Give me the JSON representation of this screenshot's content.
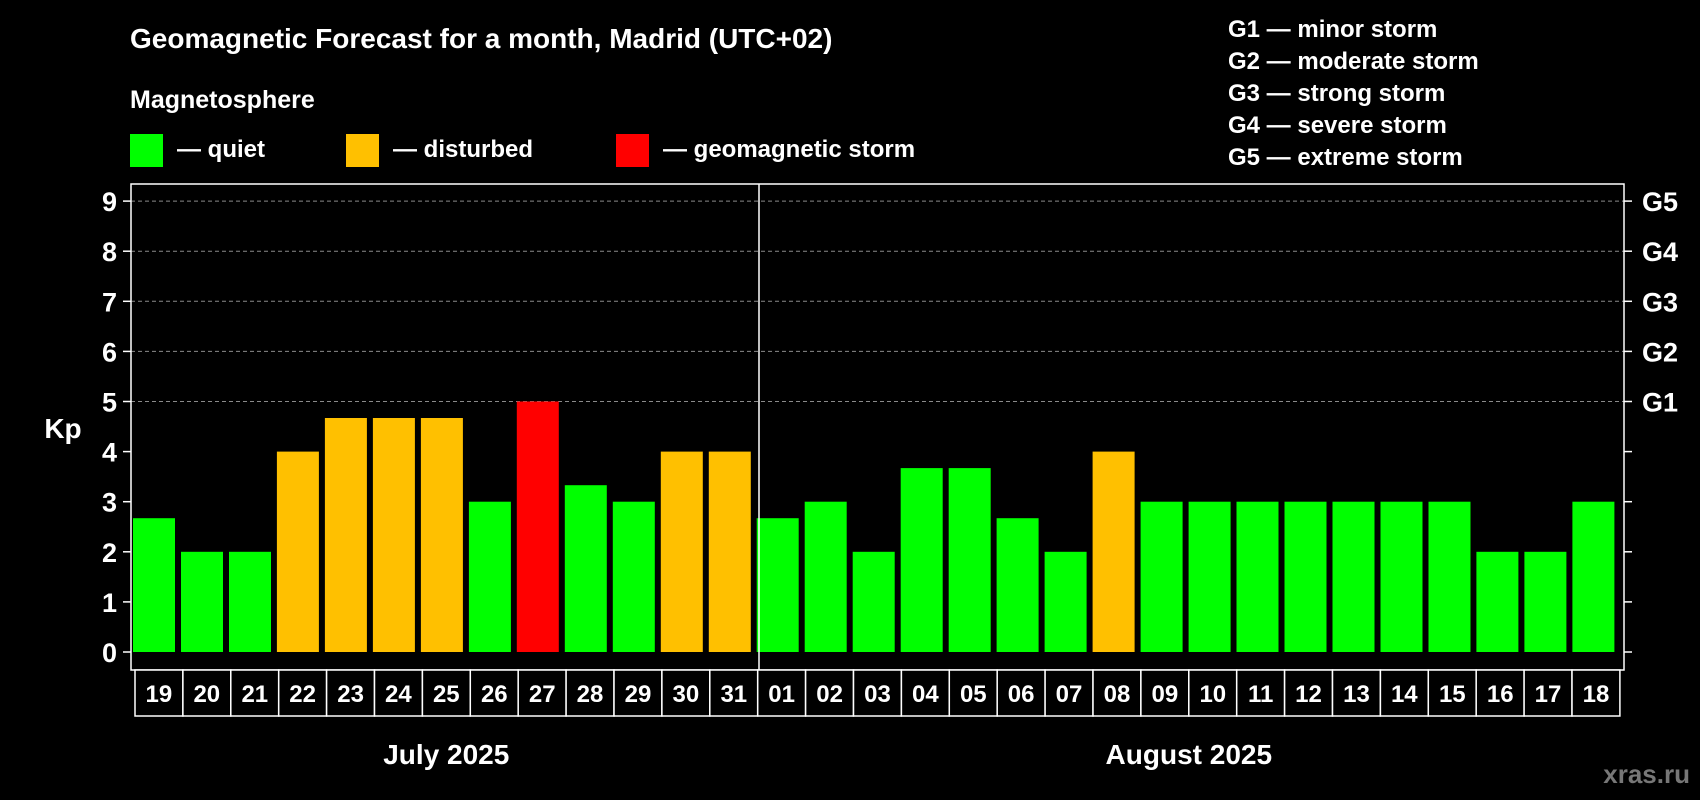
{
  "chart_data": {
    "type": "bar",
    "title": "Geomagnetic Forecast for a month, Madrid (UTC+02)",
    "legend_title": "Magnetosphere",
    "legend": [
      {
        "label": "— quiet",
        "color": "#00ff00"
      },
      {
        "label": "— disturbed",
        "color": "#ffc000"
      },
      {
        "label": "— geomagnetic storm",
        "color": "#ff0000"
      }
    ],
    "storm_scale": [
      "G1 — minor storm",
      "G2 — moderate storm",
      "G3 — strong storm",
      "G4 — severe storm",
      "G5 — extreme storm"
    ],
    "ylabel": "Kp",
    "ylim": [
      0,
      9
    ],
    "yticks": [
      "0",
      "1",
      "2",
      "3",
      "4",
      "5",
      "6",
      "7",
      "8",
      "9"
    ],
    "right_ticks": [
      {
        "kp": 5,
        "label": "G1"
      },
      {
        "kp": 6,
        "label": "G2"
      },
      {
        "kp": 7,
        "label": "G3"
      },
      {
        "kp": 8,
        "label": "G4"
      },
      {
        "kp": 9,
        "label": "G5"
      }
    ],
    "categories": [
      "19",
      "20",
      "21",
      "22",
      "23",
      "24",
      "25",
      "26",
      "27",
      "28",
      "29",
      "30",
      "31",
      "01",
      "02",
      "03",
      "04",
      "05",
      "06",
      "07",
      "08",
      "09",
      "10",
      "11",
      "12",
      "13",
      "14",
      "15",
      "16",
      "17",
      "18"
    ],
    "values": [
      2.67,
      2,
      2,
      4,
      4.67,
      4.67,
      4.67,
      3,
      5,
      3.33,
      3,
      4,
      4,
      2.67,
      3,
      2,
      3.67,
      3.67,
      2.67,
      2,
      4,
      3,
      3,
      3,
      3,
      3,
      3,
      3,
      2,
      2,
      3
    ],
    "status": [
      "quiet",
      "quiet",
      "quiet",
      "disturbed",
      "disturbed",
      "disturbed",
      "disturbed",
      "quiet",
      "storm",
      "quiet",
      "quiet",
      "disturbed",
      "disturbed",
      "quiet",
      "quiet",
      "quiet",
      "quiet",
      "quiet",
      "quiet",
      "quiet",
      "disturbed",
      "quiet",
      "quiet",
      "quiet",
      "quiet",
      "quiet",
      "quiet",
      "quiet",
      "quiet",
      "quiet",
      "quiet"
    ],
    "months": [
      {
        "label": "July 2025",
        "days": 13
      },
      {
        "label": "August 2025",
        "days": 18
      }
    ],
    "colors": {
      "quiet": "#00ff00",
      "disturbed": "#ffc000",
      "storm": "#ff0000",
      "grid": "#8a8a8a"
    },
    "grid": true
  },
  "watermark": "xras.ru"
}
